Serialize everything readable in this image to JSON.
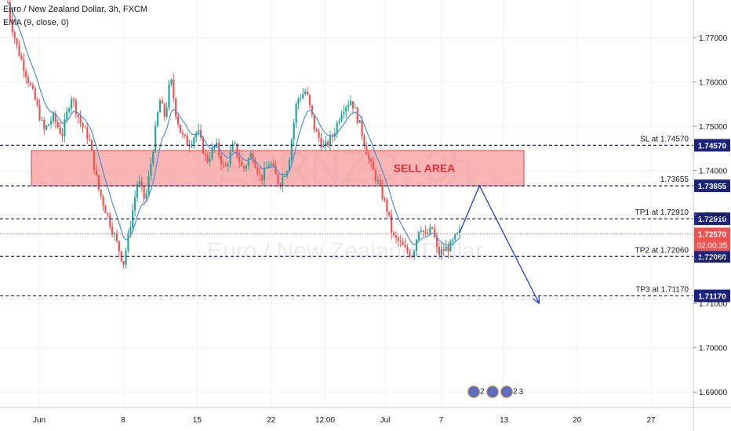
{
  "header": {
    "symbol_line": "Euro / New Zealand Dollar, 3h, FXCM",
    "indicator_line": "EMA (9, close, 0)"
  },
  "watermark": {
    "symbol": "EURNZD, 3h",
    "name": "Euro / New Zealand Dollar"
  },
  "colors": {
    "up_candle": "#26a69a",
    "down_candle": "#ef5350",
    "ema": "#4a90d9",
    "level_line": "#1a237e",
    "sell_zone_fill": "#f7a1a1",
    "sell_zone_border": "#e04040",
    "projection": "#1e3fe0",
    "current_price_line": "#ef5350"
  },
  "chart_data": {
    "type": "candlestick",
    "symbol": "EURNZD",
    "timeframe": "3h",
    "source": "FXCM",
    "x_labels": [
      "Jun",
      "8",
      "15",
      "22",
      "12:00",
      "Jul",
      "7",
      "13",
      "20",
      "27"
    ],
    "y_ticks": [
      "1.69000",
      "1.70000",
      "1.71000",
      "1.72000",
      "1.73000",
      "1.74000",
      "1.75000",
      "1.76000",
      "1.77000"
    ],
    "ylim": [
      1.6865,
      1.7785
    ],
    "ema": {
      "period": 9,
      "source": "close"
    },
    "price_path": [
      [
        0,
        1.778
      ],
      [
        0.2,
        1.773
      ],
      [
        0.5,
        1.768
      ],
      [
        1.0,
        1.762
      ],
      [
        1.5,
        1.756
      ],
      [
        2.0,
        1.749
      ],
      [
        2.5,
        1.752
      ],
      [
        3.0,
        1.748
      ],
      [
        3.5,
        1.757
      ],
      [
        4.0,
        1.751
      ],
      [
        4.5,
        1.747
      ],
      [
        5.0,
        1.736
      ],
      [
        5.5,
        1.73
      ],
      [
        6.0,
        1.724
      ],
      [
        6.4,
        1.719
      ],
      [
        6.7,
        1.726
      ],
      [
        7.2,
        1.738
      ],
      [
        7.6,
        1.733
      ],
      [
        8.0,
        1.744
      ],
      [
        8.4,
        1.756
      ],
      [
        8.7,
        1.752
      ],
      [
        9.0,
        1.761
      ],
      [
        9.3,
        1.753
      ],
      [
        9.6,
        1.748
      ],
      [
        10.0,
        1.746
      ],
      [
        10.5,
        1.749
      ],
      [
        11.0,
        1.742
      ],
      [
        11.5,
        1.746
      ],
      [
        12.0,
        1.74
      ],
      [
        12.5,
        1.746
      ],
      [
        13.0,
        1.74
      ],
      [
        13.5,
        1.744
      ],
      [
        14.0,
        1.738
      ],
      [
        14.5,
        1.742
      ],
      [
        15.0,
        1.737
      ],
      [
        15.5,
        1.741
      ],
      [
        16.0,
        1.756
      ],
      [
        16.5,
        1.758
      ],
      [
        17.0,
        1.749
      ],
      [
        17.5,
        1.745
      ],
      [
        18.0,
        1.748
      ],
      [
        18.5,
        1.754
      ],
      [
        19.0,
        1.756
      ],
      [
        19.5,
        1.75
      ],
      [
        20.0,
        1.742
      ],
      [
        20.5,
        1.737
      ],
      [
        21.0,
        1.731
      ],
      [
        21.3,
        1.725
      ],
      [
        21.6,
        1.724
      ],
      [
        22.0,
        1.722
      ],
      [
        22.4,
        1.721
      ],
      [
        22.8,
        1.728
      ],
      [
        23.1,
        1.725
      ],
      [
        23.5,
        1.727
      ],
      [
        23.8,
        1.721
      ],
      [
        24.1,
        1.722
      ],
      [
        24.5,
        1.723
      ],
      [
        24.8,
        1.725
      ],
      [
        25.0,
        1.7257
      ]
    ],
    "levels": [
      {
        "name": "SL",
        "price": 1.7457,
        "label": "SL at 1.74570",
        "price_tag": "1.74570"
      },
      {
        "name": "Sell area top",
        "price": 1.73655,
        "label": "1.73655",
        "price_tag": "1.73655"
      },
      {
        "name": "TP1",
        "price": 1.7291,
        "label": "TP1 at 1.72910",
        "price_tag": "1.72910"
      },
      {
        "name": "TP2",
        "price": 1.7206,
        "label": "TP2 at 1.72060",
        "price_tag": "1.72060"
      },
      {
        "name": "TP3",
        "price": 1.7117,
        "label": "TP3 at 1.71170",
        "price_tag": "1.71170"
      }
    ],
    "sell_zone": {
      "label": "SELL AREA",
      "price_top": 1.7445,
      "price_bottom": 1.73655,
      "x_start": 0.0,
      "x_end": 27.7
    },
    "current_price": {
      "price": 1.7257,
      "label": "1.72570",
      "countdown": "02:00:35"
    },
    "projection": [
      [
        25.0,
        1.726
      ],
      [
        26.1,
        1.73655
      ],
      [
        29.4,
        1.71
      ]
    ],
    "x_index_range": [
      0,
      37.5
    ]
  },
  "event_icons": [
    {
      "count": "2"
    },
    {
      "count": ""
    },
    {
      "count": "2"
    },
    {
      "count": "3"
    }
  ]
}
